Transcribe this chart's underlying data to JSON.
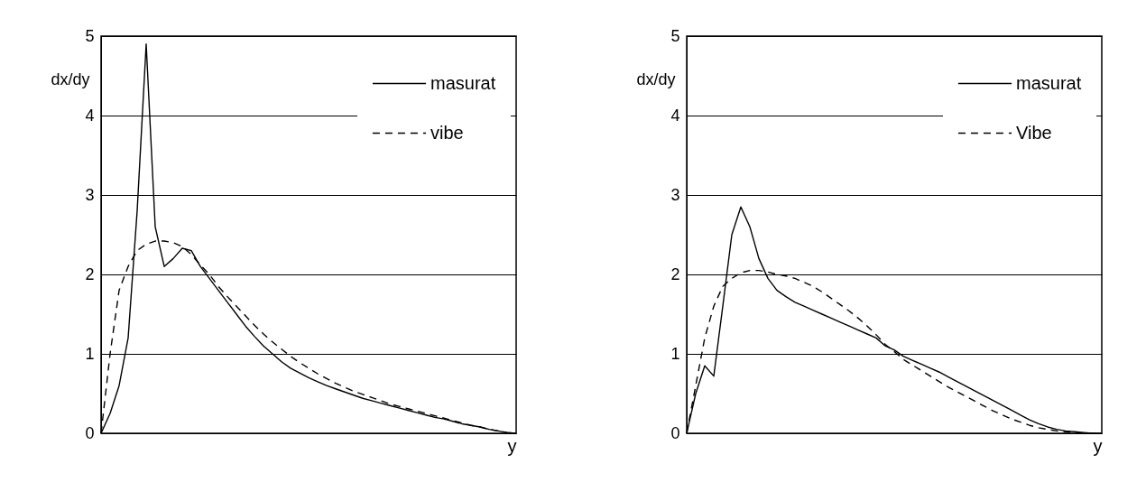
{
  "chart_data": [
    {
      "type": "line",
      "ylabel": "dx/dy",
      "xlabel": "y",
      "categories": [
        null,
        null,
        null,
        null,
        null,
        null,
        null,
        null,
        null,
        null,
        null,
        null,
        null,
        null,
        null,
        null,
        null,
        null,
        null,
        null,
        null,
        null,
        null,
        null,
        null,
        null,
        null,
        null,
        null,
        null,
        null,
        null,
        null,
        null,
        null,
        null,
        null,
        null,
        null,
        null,
        null,
        null,
        null,
        null,
        null,
        null,
        null
      ],
      "series": [
        {
          "name": "masurat",
          "color": "#000000",
          "line_style": "solid",
          "values": [
            0,
            0.25,
            0.6,
            1.2,
            2.8,
            4.9,
            2.6,
            2.1,
            2.2,
            2.33,
            2.3,
            2.1,
            1.95,
            1.8,
            1.65,
            1.5,
            1.35,
            1.22,
            1.1,
            1.0,
            0.9,
            0.82,
            0.76,
            0.7,
            0.65,
            0.6,
            0.56,
            0.52,
            0.48,
            0.44,
            0.41,
            0.38,
            0.35,
            0.32,
            0.29,
            0.26,
            0.23,
            0.2,
            0.18,
            0.15,
            0.12,
            0.1,
            0.08,
            0.05,
            0.03,
            0.01,
            0
          ]
        },
        {
          "name": "vibe",
          "color": "#000000",
          "line_style": "dashed",
          "values": [
            0,
            1.0,
            1.8,
            2.1,
            2.3,
            2.38,
            2.42,
            2.42,
            2.4,
            2.35,
            2.25,
            2.12,
            2.0,
            1.85,
            1.72,
            1.6,
            1.48,
            1.36,
            1.25,
            1.15,
            1.06,
            0.97,
            0.89,
            0.82,
            0.75,
            0.69,
            0.63,
            0.58,
            0.53,
            0.49,
            0.45,
            0.41,
            0.37,
            0.34,
            0.31,
            0.28,
            0.25,
            0.22,
            0.19,
            0.16,
            0.13,
            0.1,
            0.08,
            0.05,
            0.03,
            0.01,
            0
          ]
        }
      ],
      "ylim": [
        0,
        5
      ],
      "yticks": [
        0,
        1,
        2,
        3,
        4,
        5
      ],
      "grid": "y",
      "legend": "top right",
      "tick_labels": "y"
    },
    {
      "type": "line",
      "ylabel": "dx/dy",
      "xlabel": "y",
      "categories": [
        null,
        null,
        null,
        null,
        null,
        null,
        null,
        null,
        null,
        null,
        null,
        null,
        null,
        null,
        null,
        null,
        null,
        null,
        null,
        null,
        null,
        null,
        null,
        null,
        null,
        null,
        null,
        null,
        null,
        null,
        null,
        null,
        null,
        null,
        null,
        null,
        null,
        null,
        null,
        null,
        null,
        null,
        null,
        null,
        null,
        null,
        null
      ],
      "series": [
        {
          "name": "masurat",
          "color": "#000000",
          "line_style": "solid",
          "values": [
            0,
            0.5,
            0.85,
            0.72,
            1.6,
            2.5,
            2.85,
            2.6,
            2.2,
            1.95,
            1.8,
            1.72,
            1.65,
            1.6,
            1.55,
            1.5,
            1.45,
            1.4,
            1.35,
            1.3,
            1.25,
            1.2,
            1.1,
            1.05,
            0.97,
            0.92,
            0.87,
            0.82,
            0.77,
            0.71,
            0.65,
            0.59,
            0.53,
            0.47,
            0.41,
            0.35,
            0.29,
            0.23,
            0.17,
            0.12,
            0.08,
            0.05,
            0.03,
            0.02,
            0.01,
            0,
            0
          ]
        },
        {
          "name": "Vibe",
          "color": "#000000",
          "line_style": "dashed",
          "values": [
            0,
            0.6,
            1.2,
            1.6,
            1.85,
            1.95,
            2.02,
            2.05,
            2.05,
            2.03,
            2.0,
            1.98,
            1.95,
            1.9,
            1.85,
            1.78,
            1.7,
            1.62,
            1.54,
            1.45,
            1.35,
            1.24,
            1.12,
            1.03,
            0.93,
            0.86,
            0.79,
            0.72,
            0.65,
            0.58,
            0.52,
            0.46,
            0.4,
            0.34,
            0.28,
            0.23,
            0.18,
            0.14,
            0.1,
            0.07,
            0.05,
            0.03,
            0.02,
            0.01,
            0,
            0,
            0
          ]
        }
      ],
      "ylim": [
        0,
        5
      ],
      "yticks": [
        0,
        1,
        2,
        3,
        4,
        5
      ],
      "grid": "y",
      "legend": "top right",
      "tick_labels": "y"
    }
  ]
}
